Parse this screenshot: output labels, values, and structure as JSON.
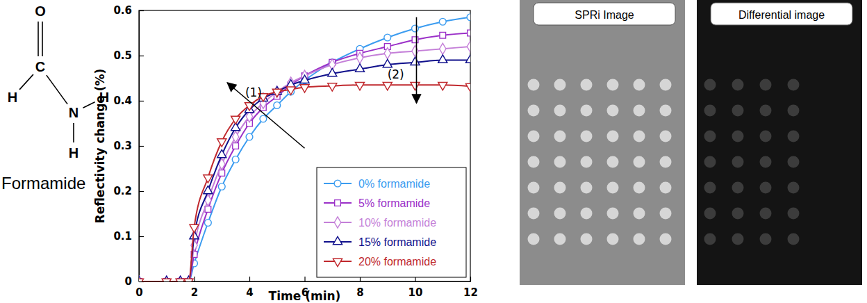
{
  "chart_data": {
    "type": "line",
    "x_label": "Time (min)",
    "y_label": "Reflectivity change (%)",
    "xlim": [
      0,
      12
    ],
    "xticks": [
      0,
      2,
      4,
      6,
      8,
      10,
      12
    ],
    "ylim": [
      0,
      0.6
    ],
    "yticks": [
      0,
      0.1,
      0.2,
      0.3,
      0.4,
      0.5,
      0.6
    ],
    "legend": "lower right",
    "x": [
      0,
      1,
      1.5,
      1.8,
      2,
      2.5,
      3,
      3.5,
      4,
      4.5,
      5,
      5.5,
      6,
      7,
      8,
      9,
      10,
      11,
      12
    ],
    "series": [
      {
        "name": "0% formamide",
        "color": "#3b9cf0",
        "marker": "circle",
        "values": [
          0,
          0,
          0,
          0,
          0.04,
          0.13,
          0.21,
          0.27,
          0.32,
          0.36,
          0.39,
          0.42,
          0.445,
          0.485,
          0.515,
          0.54,
          0.56,
          0.575,
          0.585
        ]
      },
      {
        "name": "5% formamide",
        "color": "#9b30c8",
        "marker": "square",
        "values": [
          0,
          0,
          0,
          0,
          0.06,
          0.16,
          0.24,
          0.3,
          0.35,
          0.385,
          0.41,
          0.435,
          0.455,
          0.485,
          0.505,
          0.52,
          0.535,
          0.545,
          0.55
        ]
      },
      {
        "name": "10% formamide",
        "color": "#c47fd8",
        "marker": "diamond",
        "values": [
          0,
          0,
          0,
          0,
          0.08,
          0.18,
          0.26,
          0.32,
          0.365,
          0.395,
          0.42,
          0.44,
          0.455,
          0.48,
          0.495,
          0.505,
          0.51,
          0.515,
          0.52
        ]
      },
      {
        "name": "15% formamide",
        "color": "#10108c",
        "marker": "triangle-up",
        "values": [
          0,
          0,
          0,
          0,
          0.1,
          0.2,
          0.28,
          0.34,
          0.38,
          0.405,
          0.42,
          0.435,
          0.445,
          0.46,
          0.47,
          0.48,
          0.485,
          0.49,
          0.49
        ]
      },
      {
        "name": "20% formamide",
        "color": "#c0282d",
        "marker": "triangle-down",
        "values": [
          0,
          0,
          0,
          0,
          0.12,
          0.23,
          0.31,
          0.36,
          0.39,
          0.41,
          0.42,
          0.425,
          0.43,
          0.433,
          0.435,
          0.435,
          0.435,
          0.435,
          0.432
        ]
      }
    ],
    "annotations": [
      {
        "text": "(1)",
        "x": 4.15,
        "y": 0.41,
        "arrow_from": [
          6.0,
          0.295
        ],
        "arrow_to": [
          3.2,
          0.44
        ]
      },
      {
        "text": "(2)",
        "x": 9.3,
        "y": 0.45,
        "arrow_from": [
          10.05,
          0.585
        ],
        "arrow_to": [
          10.05,
          0.395
        ]
      }
    ]
  },
  "molecule": {
    "atoms": [
      "O",
      "C",
      "H",
      "N",
      "H",
      "H"
    ],
    "name": "Formamide"
  },
  "panels": [
    {
      "title": "SPRi Image",
      "rows": 7,
      "columns": 6
    },
    {
      "title": "Differential image",
      "rows": 7,
      "columns": 4
    }
  ]
}
